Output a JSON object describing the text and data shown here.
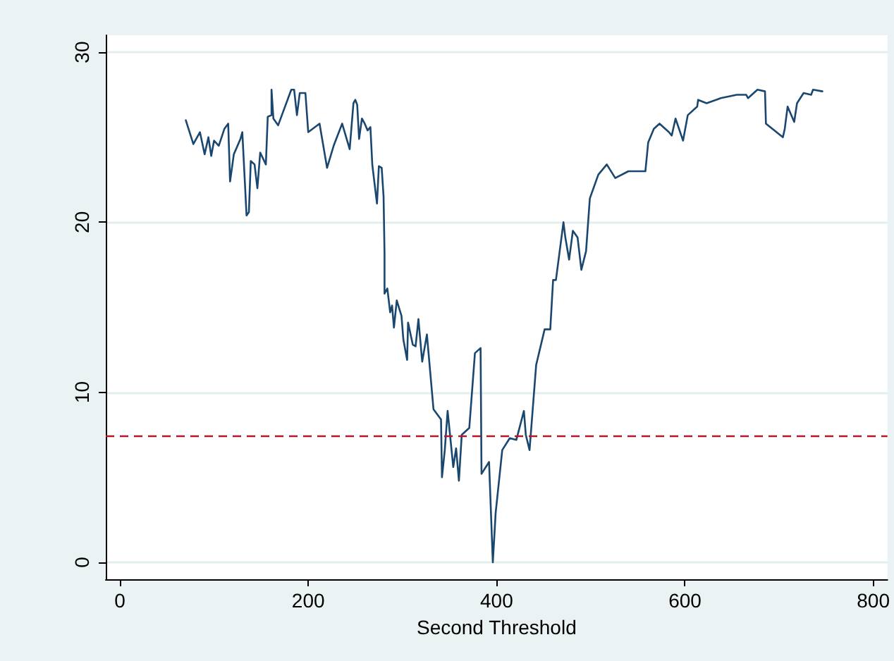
{
  "chart_data": {
    "type": "line",
    "xlabel": "Second Threshold",
    "xlim": [
      -15,
      815
    ],
    "xticks": [
      0,
      200,
      400,
      600,
      800
    ],
    "ylim": [
      -1,
      31
    ],
    "yticks": [
      0,
      10,
      20,
      30
    ],
    "grid": "y",
    "marker": "none",
    "line_style": "solid",
    "series": [
      {
        "color": "#1a476f",
        "x": [
          70,
          78,
          85,
          90,
          94,
          97,
          100,
          105,
          111,
          115,
          117,
          121,
          128,
          130,
          134.5,
          137,
          139,
          143,
          146,
          149,
          155,
          157,
          161,
          161,
          163,
          168,
          182,
          185,
          188,
          191,
          197,
          200,
          212,
          220,
          227,
          236,
          244,
          248,
          250,
          252,
          254,
          257,
          260,
          263,
          266,
          268,
          271,
          273,
          275,
          278,
          280,
          281,
          281,
          284,
          287,
          289,
          291,
          294,
          299,
          301,
          305,
          306,
          311,
          314,
          317,
          321,
          326,
          333,
          341,
          342,
          345,
          348,
          354,
          357,
          360,
          363,
          371,
          377,
          383,
          384,
          392,
          396,
          399,
          406,
          414,
          421,
          429,
          431,
          435,
          442,
          451,
          457,
          460,
          463,
          471,
          473,
          477,
          481,
          486,
          490,
          495,
          499,
          508,
          517,
          526,
          540,
          558,
          561,
          567,
          573,
          583,
          586,
          590,
          598,
          603,
          613,
          614,
          623,
          638,
          655,
          665,
          667,
          677,
          685,
          686,
          704,
          706,
          709,
          716,
          719,
          726,
          734,
          736,
          746
        ],
        "values": [
          26.0,
          24.6,
          25.3,
          24.0,
          25.0,
          23.9,
          24.8,
          24.5,
          25.5,
          25.8,
          22.4,
          24.0,
          24.9,
          25.3,
          20.4,
          20.6,
          23.6,
          23.4,
          22.0,
          24.1,
          23.4,
          26.2,
          26.3,
          27.8,
          26.1,
          25.7,
          27.8,
          27.8,
          26.3,
          27.6,
          27.6,
          25.3,
          25.8,
          23.2,
          24.5,
          25.8,
          24.3,
          27.0,
          27.2,
          26.9,
          24.9,
          26.1,
          25.8,
          25.4,
          25.6,
          23.4,
          22.0,
          21.1,
          23.3,
          23.2,
          21.5,
          18.2,
          15.8,
          16.1,
          14.7,
          15.1,
          13.8,
          15.4,
          14.5,
          13.1,
          11.9,
          14.1,
          12.8,
          12.7,
          14.3,
          11.8,
          13.4,
          9.0,
          8.4,
          5.0,
          6.6,
          8.9,
          5.6,
          6.7,
          4.8,
          7.5,
          7.9,
          12.3,
          12.6,
          5.2,
          5.9,
          0,
          2.9,
          6.6,
          7.3,
          7.2,
          8.9,
          7.5,
          6.6,
          11.6,
          13.7,
          13.7,
          16.6,
          16.6,
          20.0,
          19.1,
          17.8,
          19.5,
          19.1,
          17.2,
          18.3,
          21.4,
          22.8,
          23.4,
          22.6,
          23.0,
          23.0,
          24.7,
          25.5,
          25.8,
          25.3,
          25.1,
          26.1,
          24.8,
          26.3,
          26.8,
          27.2,
          27.0,
          27.3,
          27.5,
          27.5,
          27.3,
          27.8,
          27.7,
          25.8,
          25.0,
          25.5,
          26.8,
          25.9,
          27.0,
          27.6,
          27.5,
          27.8,
          27.7
        ]
      }
    ],
    "ref_lines": [
      {
        "axis": "y",
        "value": 7.4,
        "color": "#b2182b",
        "line_style": "dashed"
      }
    ]
  }
}
